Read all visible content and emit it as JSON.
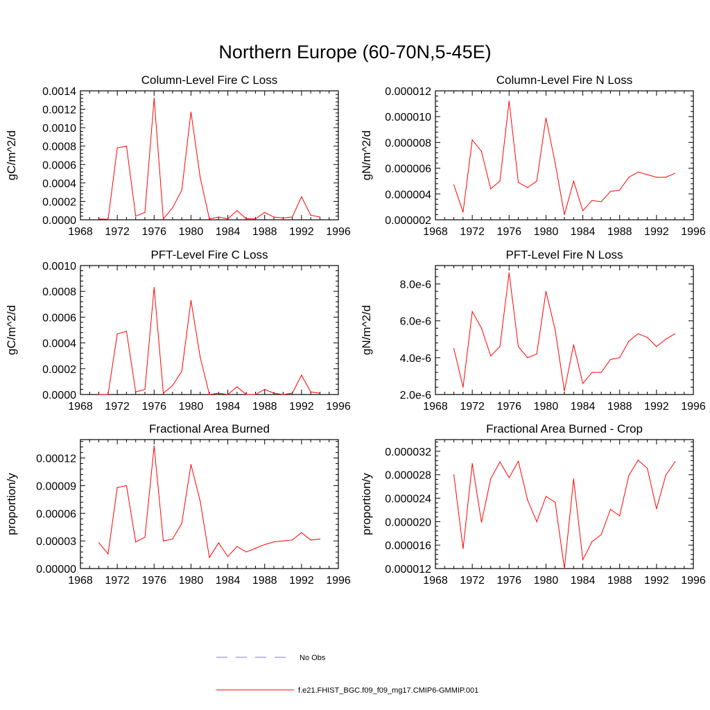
{
  "figure_title": "Northern Europe (60-70N,5-45E)",
  "legend": {
    "obs_label": "No Obs",
    "model_label": "f.e21.FHIST_BGC.f09_f09_mg17.CMIP6-GMMIP.001",
    "obs_color": "#7b7bd6",
    "model_color": "#ff0000"
  },
  "chart_data": [
    {
      "type": "line",
      "title": "Column-Level Fire C Loss",
      "ylabel": "gC/m^2/d",
      "xlim": [
        1968,
        1996
      ],
      "ylim": [
        0,
        0.0014
      ],
      "xticks": [
        1968,
        1972,
        1976,
        1980,
        1984,
        1988,
        1992,
        1996
      ],
      "yticks": [
        0,
        0.0002,
        0.0004,
        0.0006,
        0.0008,
        0.001,
        0.0012,
        0.0014
      ],
      "ytick_labels": [
        "0.0000",
        "0.0002",
        "0.0004",
        "0.0006",
        "0.0008",
        "0.0010",
        "0.0012",
        "0.0014"
      ],
      "x": [
        1970,
        1971,
        1972,
        1973,
        1974,
        1975,
        1976,
        1977,
        1978,
        1979,
        1980,
        1981,
        1982,
        1983,
        1984,
        1985,
        1986,
        1987,
        1988,
        1989,
        1990,
        1991,
        1992,
        1993,
        1994
      ],
      "series": [
        {
          "name": "f.e21.FHIST_BGC.f09_f09_mg17.CMIP6-GMMIP.001",
          "values": [
            1e-05,
            5e-06,
            0.00078,
            0.0008,
            4e-05,
            8e-05,
            0.00132,
            1e-05,
            0.00013,
            0.00032,
            0.00117,
            0.00046,
            1e-05,
            3e-05,
            1e-05,
            0.0001,
            1e-05,
            1e-05,
            8e-05,
            3e-05,
            2e-05,
            3e-05,
            0.00025,
            5e-05,
            3e-05
          ]
        }
      ]
    },
    {
      "type": "line",
      "title": "Column-Level Fire N Loss",
      "ylabel": "gN/m^2/d",
      "xlim": [
        1968,
        1996
      ],
      "ylim": [
        2e-06,
        1.2e-05
      ],
      "xticks": [
        1968,
        1972,
        1976,
        1980,
        1984,
        1988,
        1992,
        1996
      ],
      "yticks": [
        2e-06,
        4e-06,
        6e-06,
        8e-06,
        1e-05,
        1.2e-05
      ],
      "ytick_labels": [
        "0.000002",
        "0.000004",
        "0.000006",
        "0.000008",
        "0.000010",
        "0.000012"
      ],
      "x": [
        1970,
        1971,
        1972,
        1973,
        1974,
        1975,
        1976,
        1977,
        1978,
        1979,
        1980,
        1981,
        1982,
        1983,
        1984,
        1985,
        1986,
        1987,
        1988,
        1989,
        1990,
        1991,
        1992,
        1993,
        1994
      ],
      "series": [
        {
          "name": "f.e21.FHIST_BGC.f09_f09_mg17.CMIP6-GMMIP.001",
          "values": [
            4.7e-06,
            2.6e-06,
            8.2e-06,
            7.3e-06,
            4.4e-06,
            5e-06,
            1.12e-05,
            4.9e-06,
            4.5e-06,
            5e-06,
            9.9e-06,
            6.4e-06,
            2.4e-06,
            5e-06,
            2.7e-06,
            3.5e-06,
            3.4e-06,
            4.2e-06,
            4.3e-06,
            5.3e-06,
            5.7e-06,
            5.5e-06,
            5.3e-06,
            5.3e-06,
            5.6e-06
          ]
        }
      ]
    },
    {
      "type": "line",
      "title": "PFT-Level Fire C Loss",
      "ylabel": "gC/m^2/d",
      "xlim": [
        1968,
        1996
      ],
      "ylim": [
        0,
        0.001
      ],
      "xticks": [
        1968,
        1972,
        1976,
        1980,
        1984,
        1988,
        1992,
        1996
      ],
      "yticks": [
        0,
        0.0002,
        0.0004,
        0.0006,
        0.0008,
        0.001
      ],
      "ytick_labels": [
        "0.0000",
        "0.0002",
        "0.0004",
        "0.0006",
        "0.0008",
        "0.0010"
      ],
      "x": [
        1970,
        1971,
        1972,
        1973,
        1974,
        1975,
        1976,
        1977,
        1978,
        1979,
        1980,
        1981,
        1982,
        1983,
        1984,
        1985,
        1986,
        1987,
        1988,
        1989,
        1990,
        1991,
        1992,
        1993,
        1994
      ],
      "series": [
        {
          "name": "f.e21.FHIST_BGC.f09_f09_mg17.CMIP6-GMMIP.001",
          "values": [
            0.0,
            0.0,
            0.00047,
            0.00049,
            2e-05,
            4e-05,
            0.00083,
            1e-05,
            7e-05,
            0.00018,
            0.00073,
            0.00029,
            0.0,
            1e-05,
            0.0,
            6e-05,
            0.0,
            0.0,
            4e-05,
            1e-05,
            0.0,
            1e-05,
            0.00015,
            2e-05,
            1e-05
          ]
        }
      ]
    },
    {
      "type": "line",
      "title": "PFT-Level Fire N Loss",
      "ylabel": "gN/m^2/d",
      "xlim": [
        1968,
        1996
      ],
      "ylim": [
        2e-06,
        9e-06
      ],
      "xticks": [
        1968,
        1972,
        1976,
        1980,
        1984,
        1988,
        1992,
        1996
      ],
      "yticks": [
        2e-06,
        4e-06,
        6e-06,
        8e-06
      ],
      "ytick_labels": [
        "2.0e-6",
        "4.0e-6",
        "6.0e-6",
        "8.0e-6"
      ],
      "x": [
        1970,
        1971,
        1972,
        1973,
        1974,
        1975,
        1976,
        1977,
        1978,
        1979,
        1980,
        1981,
        1982,
        1983,
        1984,
        1985,
        1986,
        1987,
        1988,
        1989,
        1990,
        1991,
        1992,
        1993,
        1994
      ],
      "series": [
        {
          "name": "f.e21.FHIST_BGC.f09_f09_mg17.CMIP6-GMMIP.001",
          "values": [
            4.5e-06,
            2.4e-06,
            6.5e-06,
            5.6e-06,
            4.1e-06,
            4.6e-06,
            8.6e-06,
            4.6e-06,
            4e-06,
            4.2e-06,
            7.6e-06,
            5.5e-06,
            2.2e-06,
            4.7e-06,
            2.6e-06,
            3.2e-06,
            3.2e-06,
            3.9e-06,
            4e-06,
            4.9e-06,
            5.3e-06,
            5.1e-06,
            4.6e-06,
            5e-06,
            5.3e-06
          ]
        }
      ]
    },
    {
      "type": "line",
      "title": "Fractional Area Burned",
      "ylabel": "proportion/y",
      "xlim": [
        1968,
        1996
      ],
      "ylim": [
        0,
        0.00014
      ],
      "xticks": [
        1968,
        1972,
        1976,
        1980,
        1984,
        1988,
        1992,
        1996
      ],
      "yticks": [
        0,
        3e-05,
        6e-05,
        9e-05,
        0.00012
      ],
      "ytick_labels": [
        "0.00000",
        "0.00003",
        "0.00006",
        "0.00009",
        "0.00012"
      ],
      "x": [
        1970,
        1971,
        1972,
        1973,
        1974,
        1975,
        1976,
        1977,
        1978,
        1979,
        1980,
        1981,
        1982,
        1983,
        1984,
        1985,
        1986,
        1987,
        1988,
        1989,
        1990,
        1991,
        1992,
        1993,
        1994
      ],
      "series": [
        {
          "name": "f.e21.FHIST_BGC.f09_f09_mg17.CMIP6-GMMIP.001",
          "values": [
            2.8e-05,
            1.6e-05,
            8.8e-05,
            9e-05,
            2.9e-05,
            3.4e-05,
            0.000133,
            3e-05,
            3.2e-05,
            4.9e-05,
            0.000113,
            7.3e-05,
            1.2e-05,
            2.8e-05,
            1.3e-05,
            2.4e-05,
            1.8e-05,
            2.2e-05,
            2.6e-05,
            2.9e-05,
            3e-05,
            3.1e-05,
            3.9e-05,
            3.1e-05,
            3.2e-05
          ]
        }
      ]
    },
    {
      "type": "line",
      "title": "Fractional Area Burned - Crop",
      "ylabel": "proportion/y",
      "xlim": [
        1968,
        1996
      ],
      "ylim": [
        1.2e-05,
        3.4e-05
      ],
      "xticks": [
        1968,
        1972,
        1976,
        1980,
        1984,
        1988,
        1992,
        1996
      ],
      "yticks": [
        1.2e-05,
        1.6e-05,
        2e-05,
        2.4e-05,
        2.8e-05,
        3.2e-05
      ],
      "ytick_labels": [
        "0.000012",
        "0.000016",
        "0.000020",
        "0.000024",
        "0.000028",
        "0.000032"
      ],
      "x": [
        1970,
        1971,
        1972,
        1973,
        1974,
        1975,
        1976,
        1977,
        1978,
        1979,
        1980,
        1981,
        1982,
        1983,
        1984,
        1985,
        1986,
        1987,
        1988,
        1989,
        1990,
        1991,
        1992,
        1993,
        1994
      ],
      "series": [
        {
          "name": "f.e21.FHIST_BGC.f09_f09_mg17.CMIP6-GMMIP.001",
          "values": [
            2.8e-05,
            1.54e-05,
            2.99e-05,
            1.99e-05,
            2.73e-05,
            3.02e-05,
            2.75e-05,
            3.03e-05,
            2.37e-05,
            2e-05,
            2.43e-05,
            2.33e-05,
            1.2e-05,
            2.73e-05,
            1.35e-05,
            1.66e-05,
            1.78e-05,
            2.21e-05,
            2.1e-05,
            2.79e-05,
            3.05e-05,
            2.91e-05,
            2.22e-05,
            2.79e-05,
            3.02e-05
          ]
        }
      ]
    }
  ]
}
